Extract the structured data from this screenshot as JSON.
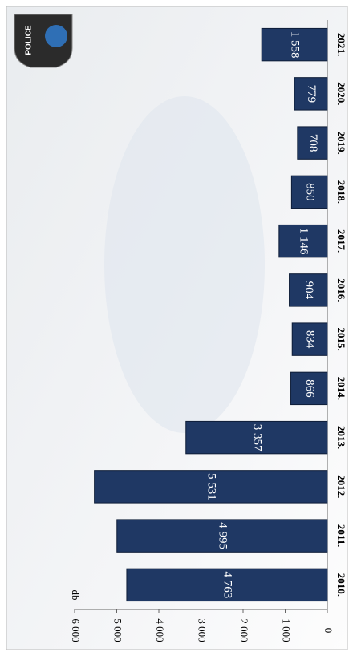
{
  "badge": {
    "text": "POLICE"
  },
  "chart_data": {
    "type": "bar",
    "orientation": "horizontal",
    "unit_label": "db",
    "categories": [
      "2010.",
      "2011.",
      "2012.",
      "2013.",
      "2014.",
      "2015.",
      "2016.",
      "2017.",
      "2018.",
      "2019.",
      "2020.",
      "2021."
    ],
    "values": [
      4763,
      4995,
      5531,
      3357,
      866,
      834,
      904,
      1146,
      850,
      708,
      779,
      1558
    ],
    "value_labels": [
      "4 763",
      "4 995",
      "5 531",
      "3 357",
      "866",
      "834",
      "904",
      "1 146",
      "850",
      "708",
      "779",
      "1 558"
    ],
    "color": "#1f3864",
    "ylim": [
      0,
      6000
    ],
    "yticks": [
      0,
      {
        "value": 1000,
        "label": "1 000"
      },
      {
        "value": 2000,
        "label": "2 000"
      },
      {
        "value": 3000,
        "label": "3 000"
      },
      {
        "value": 4000,
        "label": "4 000"
      },
      {
        "value": 5000,
        "label": "5 000"
      },
      {
        "value": 6000,
        "label": "6 000"
      }
    ]
  }
}
